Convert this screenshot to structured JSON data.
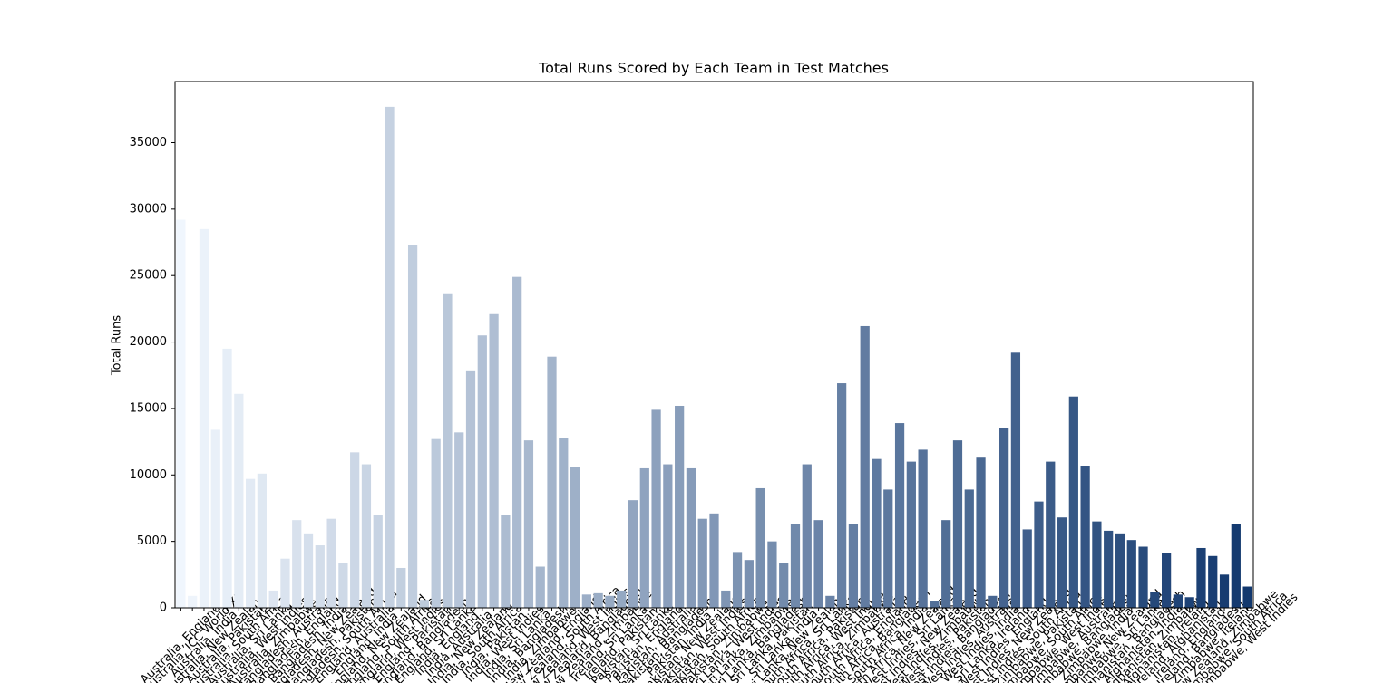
{
  "chart_data": {
    "type": "bar",
    "title": "Total Runs Scored by Each Team in Test Matches",
    "y_label": "Total Runs",
    "palette": [
      "#f0f6fd",
      "#12386e"
    ],
    "categories": [
      "Australia, England",
      "Australia, ICC World XI",
      "Australia, India",
      "Australia, New Zealand",
      "Australia, Pakistan",
      "Australia, South Africa",
      "Australia, Sri Lanka",
      "Australia, West Indies",
      "Australia, Zimbabwe",
      "Bangladesh, Australia",
      "Bangladesh, England",
      "Bangladesh, India",
      "Bangladesh, New Zealand",
      "Bangladesh, Pakistan",
      "Bangladesh, South Africa",
      "England, Australia",
      "England, India",
      "England, New Zealand",
      "England, South Africa",
      "England, West Indies",
      "England, Pakistan",
      "England, Bangladesh",
      "England, Sri Lanka",
      "India, England",
      "India, Australia",
      "India, New Zealand",
      "India, South Africa",
      "India, Pakistan",
      "India, West Indies",
      "India, Sri Lanka",
      "India, Bangladesh",
      "India, Zimbabwe",
      "New Zealand, England",
      "New Zealand, South Africa",
      "New Zealand, West Indies",
      "New Zealand, Bangladesh",
      "New Zealand, Zimbabwe",
      "Ireland, Sri Lanka",
      "Ireland, Pakistan",
      "Pakistan, Sri Lanka",
      "Pakistan, England",
      "Pakistan, Australia",
      "Pakistan, Bangladesh",
      "Pakistan, India",
      "Pakistan, New Zealand",
      "Pakistan, West Indies",
      "Pakistan, South Africa",
      "Pakistan, Zimbabwe",
      "Sri Lanka, West Indies",
      "Sri Lanka, Zimbabwe",
      "Sri Lanka, Bangladesh",
      "Sri Lanka, Pakistan",
      "Sri Lanka, India",
      "Sri Lanka, New Zealand",
      "South Africa, Sri Lanka",
      "South Africa, Pakistan",
      "South Africa, West Indies",
      "South Africa, Zimbabwe",
      "South Africa, Australia",
      "South Africa, England",
      "South Africa, Bangladesh",
      "South Africa, India",
      "South Africa, New Zealand",
      "West Indies, Sri Lanka",
      "West Indies, New Zealand",
      "West Indies, Zimbabwe",
      "West Indies, Pakistan",
      "West Indies, Bangladesh",
      "West Indies, Australia",
      "West Indies, India",
      "Sri Lanka, Ireland",
      "West Indies, England",
      "West Indies, New Zealand",
      "West Indies, South Africa",
      "Zimbabwe, Pakistan",
      "Zimbabwe, South Africa",
      "Zimbabwe, West Indies",
      "Zimbabwe, Australia",
      "Zimbabwe, Bangladesh",
      "Zimbabwe, India",
      "Zimbabwe, New Zealand",
      "Zimbabwe, Sri Lanka",
      "Afghanistan, Bangladesh",
      "Afghanistan, India",
      "Afghanistan, Zimbabwe",
      "Afghanistan, Ireland",
      "Ireland, Afghanistan",
      "Ireland, England",
      "Ireland, Bangladesh",
      "Zimbabwe, Ireland",
      "New Zealand, Zimbabwe",
      "Zimbabwe, South Africa",
      "Zimbabwe, West Indies"
    ],
    "values": [
      29200,
      900,
      28500,
      13400,
      19500,
      16100,
      9700,
      10100,
      1300,
      3700,
      6600,
      5600,
      4700,
      6700,
      3400,
      11700,
      10800,
      7000,
      37700,
      3000,
      27300,
      600,
      12700,
      23600,
      13200,
      17800,
      20500,
      22100,
      7000,
      24900,
      12600,
      3100,
      18900,
      12800,
      10600,
      1000,
      1100,
      900,
      1300,
      8100,
      10500,
      14900,
      10800,
      15200,
      10500,
      6700,
      7100,
      1300,
      4200,
      3600,
      9000,
      5000,
      3400,
      6300,
      10800,
      6600,
      900,
      16900,
      6300,
      21200,
      11200,
      8900,
      13900,
      11000,
      11900,
      500,
      6600,
      12600,
      8900,
      11300,
      900,
      13500,
      19200,
      5900,
      8000,
      11000,
      6800,
      15900,
      10700,
      6500,
      5800,
      5600,
      5100,
      4600,
      1200,
      4100,
      1000,
      800,
      4500,
      3900,
      2500,
      6300,
      1600
    ],
    "ylim": [
      0,
      39600
    ],
    "yticks": [
      0,
      5000,
      10000,
      15000,
      20000,
      25000,
      30000,
      35000
    ]
  }
}
